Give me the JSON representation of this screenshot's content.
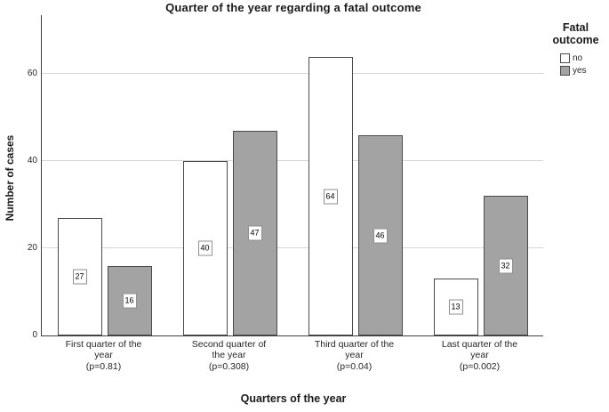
{
  "title": "Quarter of the year regarding a fatal outcome",
  "chart_data": {
    "type": "bar",
    "title": "Quarter of the year regarding a fatal outcome",
    "xlabel": "Quarters of the year",
    "ylabel": "Number of cases",
    "categories": [
      "First quarter of the year (p=0.81)",
      "Second quarter of the year (p=0.308)",
      "Third quarter of the year (p=0.04)",
      "Last quarter of the year (p=0.002)"
    ],
    "category_display_lines": [
      [
        "First quarter of the",
        "year",
        "(p=0.81)"
      ],
      [
        "Second quarter of",
        "the year",
        "(p=0.308)"
      ],
      [
        "Third quarter of the",
        "year",
        "(p=0.04)"
      ],
      [
        "Last quarter of the",
        "year",
        "(p=0.002)"
      ]
    ],
    "series": [
      {
        "name": "no",
        "values": [
          27,
          40,
          64,
          13
        ]
      },
      {
        "name": "yes",
        "values": [
          16,
          47,
          46,
          32
        ]
      }
    ],
    "bar_value_labels": true,
    "yticks": [
      0,
      20,
      40,
      60
    ],
    "ylim": [
      0,
      73.5
    ],
    "grid": true,
    "legend_position": "right"
  },
  "legend": {
    "title": "Fatal outcome",
    "items": [
      {
        "label": "no",
        "fill": "#ffffff"
      },
      {
        "label": "yes",
        "fill": "#a3a3a3"
      }
    ]
  },
  "colors": {
    "bar_no_fill": "#ffffff",
    "bar_yes_fill": "#a3a3a3",
    "bar_border": "#4a4a4a",
    "gridline": "#d6d6d6",
    "axis": "#3f3f3f",
    "value_label_box_border": "#8f8f8f",
    "text": "#1a1a1a"
  }
}
